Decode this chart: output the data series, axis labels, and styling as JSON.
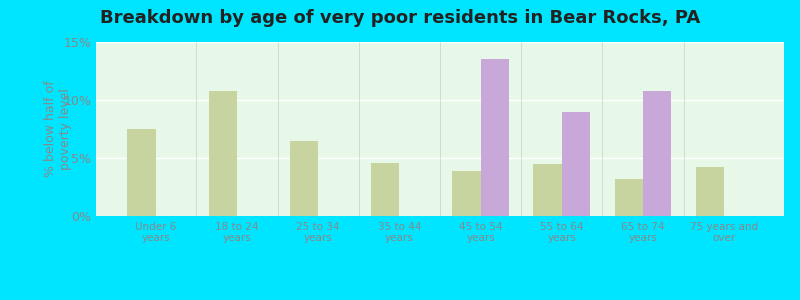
{
  "title": "Breakdown by age of very poor residents in Bear Rocks, PA",
  "ylabel": "% below half of\npoverty level",
  "categories": [
    "Under 6\nyears",
    "18 to 24\nyears",
    "25 to 34\nyears",
    "35 to 44\nyears",
    "45 to 54\nyears",
    "55 to 64\nyears",
    "65 to 74\nyears",
    "75 years and\nover"
  ],
  "bear_rocks": [
    0,
    0,
    0,
    0,
    13.5,
    9.0,
    10.8,
    0
  ],
  "pennsylvania": [
    7.5,
    10.8,
    6.5,
    4.6,
    3.9,
    4.5,
    3.2,
    4.2
  ],
  "bear_rocks_color": "#c8a8d8",
  "pennsylvania_color": "#c8d4a0",
  "background_color": "#e8f8e8",
  "outer_background": "#00e5ff",
  "ylim": [
    0,
    15
  ],
  "yticks": [
    0,
    5,
    10,
    15
  ],
  "ytick_labels": [
    "0%",
    "5%",
    "10%",
    "15%"
  ],
  "grid_color": "#ffffff",
  "title_fontsize": 13,
  "axis_fontsize": 9,
  "legend_fontsize": 9,
  "bar_width": 0.35
}
